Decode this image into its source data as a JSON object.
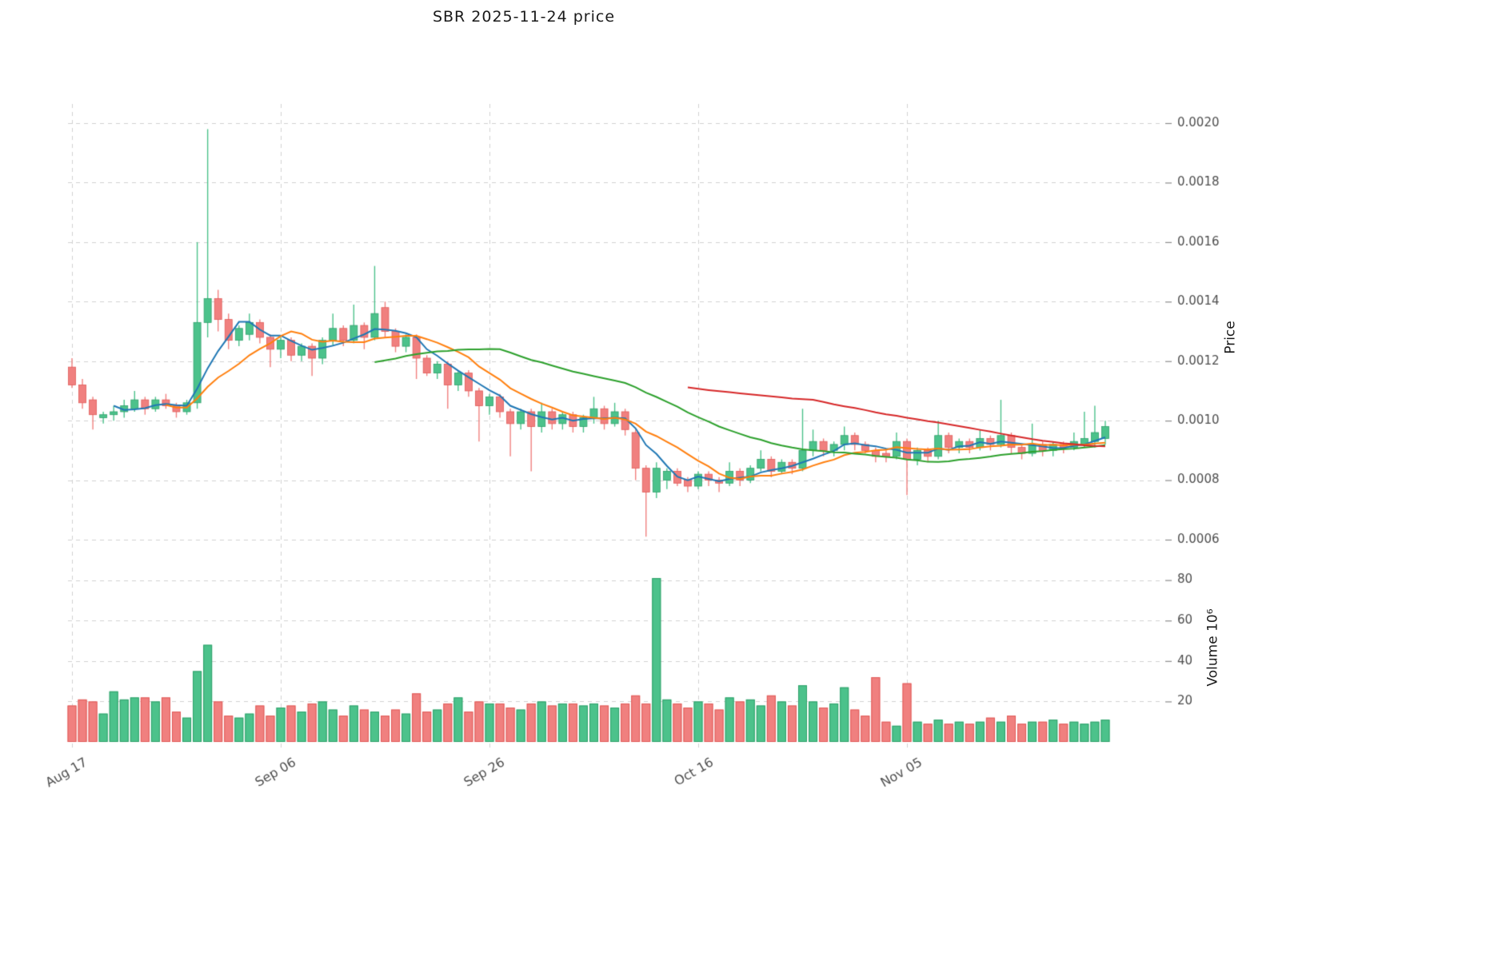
{
  "title": "SBR  2025-11-24  price",
  "chart_data": {
    "type": "candlestick_with_volume",
    "title": "SBR  2025-11-24  price",
    "price_axis_label": "Price",
    "volume_axis_label": "Volume  10⁶",
    "price_unit": 1e-05,
    "volume_unit": "millions",
    "ylim": [
      0.00055,
      0.00207
    ],
    "grid": true,
    "price_ticks": [
      0.0006,
      0.0008,
      0.001,
      0.0012,
      0.0014,
      0.0016,
      0.0018,
      0.002
    ],
    "volume_ticks": [
      20,
      40,
      60,
      80
    ],
    "x_ticks": [
      {
        "index": 0,
        "label": "Aug 17"
      },
      {
        "index": 20,
        "label": "Sep 06"
      },
      {
        "index": 40,
        "label": "Sep 26"
      },
      {
        "index": 60,
        "label": "Oct 16"
      },
      {
        "index": 80,
        "label": "Nov 05"
      }
    ],
    "colors": {
      "up": "#4cc28b",
      "down": "#f0807f",
      "up_edge": "#2fa06a",
      "down_edge": "#e05a58",
      "grid": "#d0d0d0",
      "tick_text": "#4d4d4d",
      "ma_short": "#1f77b4",
      "ma_mid": "#ff7f0e",
      "ma_long": "#2ca02c",
      "ma_longest": "#d62728"
    },
    "moving_averages": [
      {
        "window": 5,
        "color": "#1f77b4"
      },
      {
        "window": 10,
        "color": "#ff7f0e"
      },
      {
        "window": 30,
        "color": "#2ca02c"
      },
      {
        "window": 60,
        "color": "#d62728"
      }
    ],
    "ohlcv_columns": [
      "open",
      "high",
      "low",
      "close",
      "volume_millions"
    ],
    "ohlcv": [
      [
        118,
        121,
        111,
        112,
        18
      ],
      [
        112,
        114,
        104,
        106,
        21
      ],
      [
        107,
        108,
        97,
        102,
        20
      ],
      [
        101,
        103,
        99,
        102,
        14
      ],
      [
        102,
        105,
        100,
        103,
        25
      ],
      [
        103,
        107,
        101,
        105,
        21
      ],
      [
        104,
        110,
        103,
        107,
        22
      ],
      [
        107,
        108,
        102,
        104,
        22
      ],
      [
        104,
        108,
        103,
        107,
        20
      ],
      [
        107,
        109,
        104,
        105,
        22
      ],
      [
        105,
        106,
        101,
        103,
        15
      ],
      [
        103,
        107,
        102,
        106,
        12
      ],
      [
        106,
        160,
        104,
        133,
        35
      ],
      [
        133,
        198,
        128,
        141,
        48
      ],
      [
        141,
        144,
        130,
        134,
        20
      ],
      [
        134,
        136,
        124,
        127,
        13
      ],
      [
        127,
        132,
        125,
        131,
        12
      ],
      [
        129,
        136,
        127,
        133,
        14
      ],
      [
        133,
        134,
        126,
        128,
        18
      ],
      [
        128,
        129,
        118,
        124,
        13
      ],
      [
        124,
        128,
        121,
        127,
        17
      ],
      [
        127,
        128,
        120,
        122,
        18
      ],
      [
        122,
        126,
        120,
        125,
        15
      ],
      [
        125,
        126,
        115,
        121,
        19
      ],
      [
        121,
        128,
        119,
        127,
        20
      ],
      [
        127,
        136,
        125,
        131,
        16
      ],
      [
        131,
        132,
        125,
        127,
        13
      ],
      [
        127,
        139,
        126,
        132,
        18
      ],
      [
        132,
        133,
        124,
        128,
        16
      ],
      [
        128,
        152,
        127,
        136,
        15
      ],
      [
        138,
        140,
        128,
        130,
        13
      ],
      [
        130,
        131,
        123,
        125,
        16
      ],
      [
        125,
        129,
        123,
        128,
        14
      ],
      [
        128,
        129,
        114,
        121,
        24
      ],
      [
        121,
        122,
        115,
        116,
        15
      ],
      [
        116,
        120,
        114,
        119,
        16
      ],
      [
        119,
        120,
        104,
        112,
        19
      ],
      [
        112,
        117,
        110,
        116,
        22
      ],
      [
        116,
        117,
        108,
        110,
        15
      ],
      [
        110,
        111,
        93,
        105,
        20
      ],
      [
        105,
        109,
        102,
        108,
        19
      ],
      [
        108,
        109,
        101,
        103,
        19
      ],
      [
        103,
        104,
        88,
        99,
        17
      ],
      [
        99,
        104,
        97,
        103,
        16
      ],
      [
        103,
        104,
        83,
        98,
        19
      ],
      [
        98,
        106,
        96,
        103,
        20
      ],
      [
        103,
        104,
        97,
        99,
        18
      ],
      [
        99,
        103,
        97,
        102,
        19
      ],
      [
        102,
        103,
        96,
        98,
        19
      ],
      [
        98,
        102,
        96,
        101,
        18
      ],
      [
        101,
        108,
        99,
        104,
        19
      ],
      [
        104,
        105,
        97,
        99,
        18
      ],
      [
        99,
        106,
        98,
        103,
        17
      ],
      [
        103,
        104,
        95,
        97,
        19
      ],
      [
        96,
        97,
        80,
        84,
        23
      ],
      [
        84,
        85,
        61,
        76,
        19
      ],
      [
        76,
        86,
        74,
        84,
        81
      ],
      [
        80,
        84,
        77,
        83,
        21
      ],
      [
        83,
        84,
        78,
        79,
        19
      ],
      [
        80,
        81,
        76,
        78,
        17
      ],
      [
        78,
        83,
        77,
        82,
        20
      ],
      [
        82,
        83,
        78,
        80,
        19
      ],
      [
        80,
        81,
        76,
        79,
        16
      ],
      [
        79,
        86,
        78,
        83,
        22
      ],
      [
        83,
        84,
        78,
        80,
        20
      ],
      [
        80,
        85,
        79,
        84,
        21
      ],
      [
        84,
        90,
        83,
        87,
        18
      ],
      [
        87,
        88,
        81,
        83,
        23
      ],
      [
        83,
        87,
        82,
        86,
        20
      ],
      [
        86,
        87,
        82,
        84,
        18
      ],
      [
        84,
        104,
        83,
        90,
        28
      ],
      [
        90,
        97,
        88,
        93,
        20
      ],
      [
        93,
        94,
        88,
        90,
        17
      ],
      [
        90,
        93,
        88,
        92,
        19
      ],
      [
        92,
        98,
        90,
        95,
        27
      ],
      [
        95,
        96,
        90,
        92,
        16
      ],
      [
        92,
        93,
        89,
        90,
        13
      ],
      [
        90,
        91,
        86,
        88,
        32
      ],
      [
        89,
        90,
        86,
        88,
        10
      ],
      [
        88,
        96,
        87,
        93,
        8
      ],
      [
        93,
        94,
        75,
        87,
        29
      ],
      [
        87,
        91,
        85,
        90,
        10
      ],
      [
        90,
        91,
        86,
        88,
        9
      ],
      [
        88,
        100,
        87,
        95,
        11
      ],
      [
        95,
        96,
        89,
        91,
        9
      ],
      [
        91,
        94,
        89,
        93,
        10
      ],
      [
        93,
        94,
        89,
        91,
        9
      ],
      [
        91,
        97,
        90,
        94,
        10
      ],
      [
        94,
        95,
        90,
        92,
        12
      ],
      [
        92,
        107,
        91,
        95,
        10
      ],
      [
        95,
        96,
        89,
        91,
        13
      ],
      [
        91,
        92,
        87,
        89,
        9
      ],
      [
        89,
        99,
        88,
        92,
        10
      ],
      [
        92,
        93,
        88,
        90,
        10
      ],
      [
        90,
        93,
        88,
        92,
        11
      ],
      [
        92,
        93,
        89,
        91,
        9
      ],
      [
        91,
        96,
        90,
        93,
        10
      ],
      [
        92,
        103,
        91,
        94,
        9
      ],
      [
        93,
        105,
        91,
        96,
        10
      ],
      [
        94,
        100,
        92,
        98,
        11
      ]
    ]
  }
}
